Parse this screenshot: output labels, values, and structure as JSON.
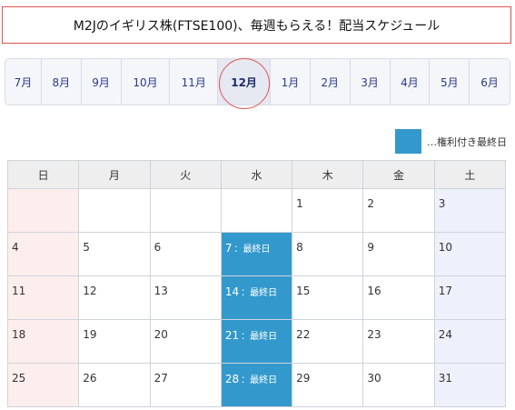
{
  "title": "M2Jのイギリス株(FTSE100)、毎週もらえる！配当スケジュール",
  "months": [
    "7月",
    "8月",
    "9月",
    "10月",
    "11月",
    "12月",
    "1月",
    "2月",
    "3月",
    "4月",
    "5月",
    "6月"
  ],
  "active_month": "12月",
  "legend_label": "…権利付き最終日",
  "weekdays": [
    "日",
    "月",
    "火",
    "水",
    "木",
    "金",
    "土"
  ],
  "highlight_suffix": "：最終日",
  "weeks": [
    [
      "",
      "",
      "",
      "",
      "1",
      "2",
      "3"
    ],
    [
      "4",
      "5",
      "6",
      "7",
      "8",
      "9",
      "10"
    ],
    [
      "11",
      "12",
      "13",
      "14",
      "15",
      "16",
      "17"
    ],
    [
      "18",
      "19",
      "20",
      "21",
      "22",
      "23",
      "24"
    ],
    [
      "25",
      "26",
      "27",
      "28",
      "29",
      "30",
      "31"
    ]
  ],
  "highlight_dates": [
    "7",
    "14",
    "21",
    "28"
  ],
  "colors": {
    "highlight": "#3399cc",
    "sunday_bg": "#fdeeee",
    "saturday_bg": "#eef0fb",
    "title_border": "#d9534f",
    "month_text": "#2b3a8a"
  }
}
